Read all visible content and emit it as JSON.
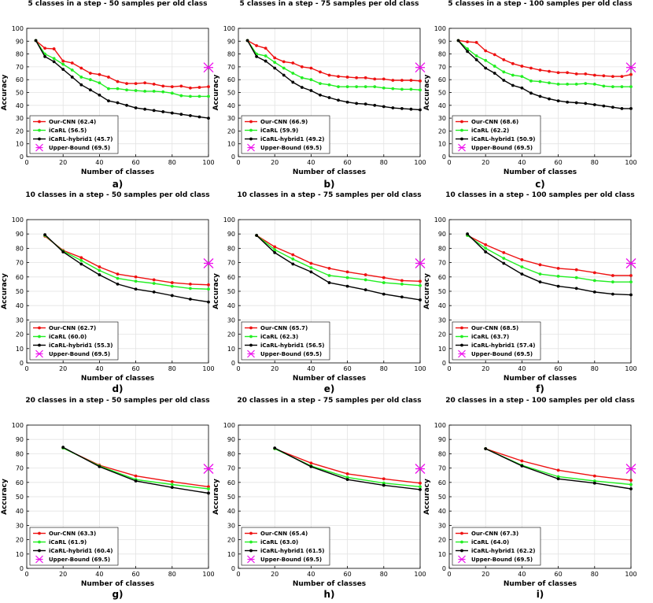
{
  "figure": {
    "colors": {
      "ours": "#ee1111",
      "icarl": "#22ee22",
      "hybrid": "#000000",
      "upper": "#ee11ee"
    },
    "series_names": [
      "Our-CNN",
      "iCaRL",
      "iCaRL-hybrid1",
      "Upper-Bound"
    ]
  },
  "chart_data": [
    {
      "type": "line",
      "panel": "a)",
      "title": "5 classes in a step - 50 samples per old class",
      "xlabel": "Number of classes",
      "ylabel": "Accuracy",
      "xlim": [
        0,
        100
      ],
      "ylim": [
        0,
        100
      ],
      "xticks": [
        0,
        20,
        40,
        60,
        80,
        100
      ],
      "yticks": [
        0,
        10,
        20,
        30,
        40,
        50,
        60,
        70,
        80,
        90,
        100
      ],
      "x": [
        5,
        10,
        15,
        20,
        25,
        30,
        35,
        40,
        45,
        50,
        55,
        60,
        65,
        70,
        75,
        80,
        85,
        90,
        95,
        100
      ],
      "series": [
        {
          "name": "Our-CNN",
          "legend": "Our-CNN (62.4)",
          "color": "#ee1111",
          "values": [
            90.5,
            84.5,
            84,
            74.5,
            73,
            69,
            65,
            64,
            62,
            58.5,
            57,
            57,
            57.5,
            56.5,
            55,
            54.5,
            55,
            53.5,
            54,
            54.5
          ]
        },
        {
          "name": "iCaRL",
          "legend": "iCaRL (56.5)",
          "color": "#22ee22",
          "values": [
            90.5,
            80,
            76.5,
            72,
            67.5,
            62,
            60,
            57.5,
            53,
            53,
            52,
            51.5,
            51,
            51,
            50.5,
            49.5,
            47.5,
            47,
            47,
            47
          ]
        },
        {
          "name": "iCaRL-hybrid1",
          "legend": "iCaRL-hybrid1 (45.7)",
          "color": "#000000",
          "values": [
            90.5,
            78,
            74,
            68,
            62,
            56,
            52,
            48,
            43.5,
            42,
            40,
            38,
            37,
            36,
            35,
            34,
            33,
            32,
            31,
            30
          ]
        }
      ],
      "upper_bound": {
        "legend": "Upper-Bound (69.5)",
        "x": 100,
        "y": 69.5,
        "color": "#ee11ee"
      },
      "legend_position": "bottom-left"
    },
    {
      "type": "line",
      "panel": "b)",
      "title": "5 classes in a step - 75 samples per old class",
      "xlabel": "Number of classes",
      "ylabel": "Accuracy",
      "xlim": [
        0,
        100
      ],
      "ylim": [
        0,
        100
      ],
      "xticks": [
        0,
        20,
        40,
        60,
        80,
        100
      ],
      "yticks": [
        0,
        10,
        20,
        30,
        40,
        50,
        60,
        70,
        80,
        90,
        100
      ],
      "x": [
        5,
        10,
        15,
        20,
        25,
        30,
        35,
        40,
        45,
        50,
        55,
        60,
        65,
        70,
        75,
        80,
        85,
        90,
        95,
        100
      ],
      "series": [
        {
          "name": "Our-CNN",
          "legend": "Our-CNN (66.9)",
          "color": "#ee1111",
          "values": [
            90.5,
            86.5,
            84.5,
            77,
            74,
            73,
            70,
            69,
            66,
            63.5,
            62.5,
            62,
            61.5,
            61.5,
            60.5,
            60.5,
            59.5,
            59.5,
            59.5,
            59
          ]
        },
        {
          "name": "iCaRL",
          "legend": "iCaRL (59.9)",
          "color": "#22ee22",
          "values": [
            90.5,
            80,
            78.5,
            73.5,
            69,
            65,
            61.5,
            60,
            57,
            56,
            54.5,
            54.5,
            54.5,
            54.5,
            54.5,
            53.5,
            53,
            52.5,
            52.5,
            52
          ]
        },
        {
          "name": "iCaRL-hybrid1",
          "legend": "iCaRL-hybrid1 (49.2)",
          "color": "#000000",
          "values": [
            90.5,
            78,
            74.5,
            69,
            63.5,
            58,
            54,
            51.5,
            48,
            46,
            44,
            42.5,
            41.5,
            41,
            40,
            39,
            38,
            37.5,
            37,
            36.5
          ]
        }
      ],
      "upper_bound": {
        "legend": "Upper-Bound (69.5)",
        "x": 100,
        "y": 69.5,
        "color": "#ee11ee"
      },
      "legend_position": "bottom-left"
    },
    {
      "type": "line",
      "panel": "c)",
      "title": "5 classes in a step - 100 samples per old class",
      "xlabel": "Number of classes",
      "ylabel": "Accuracy",
      "xlim": [
        0,
        100
      ],
      "ylim": [
        0,
        100
      ],
      "xticks": [
        0,
        20,
        40,
        60,
        80,
        100
      ],
      "yticks": [
        0,
        10,
        20,
        30,
        40,
        50,
        60,
        70,
        80,
        90,
        100
      ],
      "x": [
        5,
        10,
        15,
        20,
        25,
        30,
        35,
        40,
        45,
        50,
        55,
        60,
        65,
        70,
        75,
        80,
        85,
        90,
        95,
        100
      ],
      "series": [
        {
          "name": "Our-CNN",
          "legend": "Our-CNN (68.6)",
          "color": "#ee1111",
          "values": [
            90.5,
            89.5,
            89,
            82.5,
            79.5,
            75.5,
            72.5,
            70.5,
            69,
            67.5,
            66.5,
            65.5,
            65.5,
            64.5,
            64.5,
            63.5,
            63,
            62.5,
            62.5,
            64
          ]
        },
        {
          "name": "iCaRL",
          "legend": "iCaRL (62.2)",
          "color": "#22ee22",
          "values": [
            90.5,
            84,
            78.5,
            75,
            70.5,
            66,
            63.5,
            62.5,
            59,
            58.5,
            57.5,
            56.5,
            56.5,
            56.5,
            57,
            56.5,
            55,
            54.5,
            54.5,
            54.5
          ]
        },
        {
          "name": "iCaRL-hybrid1",
          "legend": "iCaRL-hybrid1 (50.9)",
          "color": "#000000",
          "values": [
            90.5,
            82,
            75.5,
            69,
            65,
            59.5,
            55.5,
            53.5,
            49.5,
            47,
            45,
            43.5,
            42.5,
            42,
            41.5,
            40.5,
            39.5,
            38.5,
            37.5,
            37.5
          ]
        }
      ],
      "upper_bound": {
        "legend": "Upper-Bound (69.5)",
        "x": 100,
        "y": 69.5,
        "color": "#ee11ee"
      },
      "legend_position": "bottom-left"
    },
    {
      "type": "line",
      "panel": "d)",
      "title": "10 classes in a step - 50 samples per old class",
      "xlabel": "Number of classes",
      "ylabel": "Accuracy",
      "xlim": [
        0,
        100
      ],
      "ylim": [
        0,
        100
      ],
      "xticks": [
        0,
        20,
        40,
        60,
        80,
        100
      ],
      "yticks": [
        0,
        10,
        20,
        30,
        40,
        50,
        60,
        70,
        80,
        90,
        100
      ],
      "x": [
        10,
        20,
        30,
        40,
        50,
        60,
        70,
        80,
        90,
        100
      ],
      "series": [
        {
          "name": "Our-CNN",
          "legend": "Our-CNN (62.7)",
          "color": "#ee1111",
          "values": [
            88.5,
            78.5,
            73.5,
            67,
            62,
            60,
            58,
            56,
            55,
            54.5
          ]
        },
        {
          "name": "iCaRL",
          "legend": "iCaRL (60.0)",
          "color": "#22ee22",
          "values": [
            89,
            78,
            71.5,
            64.5,
            59,
            57,
            55.5,
            53.5,
            52,
            51.5
          ]
        },
        {
          "name": "iCaRL-hybrid1",
          "legend": "iCaRL-hybrid1 (55.3)",
          "color": "#000000",
          "values": [
            89.5,
            77.5,
            69,
            61.5,
            55,
            51.5,
            49.5,
            47,
            44.5,
            42.5
          ]
        }
      ],
      "upper_bound": {
        "legend": "Upper-Bound (69.5)",
        "x": 100,
        "y": 69.5,
        "color": "#ee11ee"
      },
      "legend_position": "bottom-left"
    },
    {
      "type": "line",
      "panel": "e)",
      "title": "10 classes in a step - 75 samples per old class",
      "xlabel": "Number of classes",
      "ylabel": "Accuracy",
      "xlim": [
        0,
        100
      ],
      "ylim": [
        0,
        100
      ],
      "xticks": [
        0,
        20,
        40,
        60,
        80,
        100
      ],
      "yticks": [
        0,
        10,
        20,
        30,
        40,
        50,
        60,
        70,
        80,
        90,
        100
      ],
      "x": [
        10,
        20,
        30,
        40,
        50,
        60,
        70,
        80,
        90,
        100
      ],
      "series": [
        {
          "name": "Our-CNN",
          "legend": "Our-CNN (65.7)",
          "color": "#ee1111",
          "values": [
            89,
            81,
            75.5,
            69.5,
            66,
            63.5,
            61.5,
            59.5,
            57.5,
            57
          ]
        },
        {
          "name": "iCaRL",
          "legend": "iCaRL (62.3)",
          "color": "#22ee22",
          "values": [
            89,
            79,
            72.5,
            66.5,
            61,
            59.5,
            58,
            56,
            55,
            54
          ]
        },
        {
          "name": "iCaRL-hybrid1",
          "legend": "iCaRL-hybrid1 (56.5)",
          "color": "#000000",
          "values": [
            89,
            77,
            69,
            63.5,
            56,
            53.5,
            51,
            48,
            46,
            44
          ]
        }
      ],
      "upper_bound": {
        "legend": "Upper-Bound (69.5)",
        "x": 100,
        "y": 69.5,
        "color": "#ee11ee"
      },
      "legend_position": "bottom-left"
    },
    {
      "type": "line",
      "panel": "f)",
      "title": "10 classes in a step - 100 samples per old class",
      "xlabel": "Number of classes",
      "ylabel": "Accuracy",
      "xlim": [
        0,
        100
      ],
      "ylim": [
        0,
        100
      ],
      "xticks": [
        0,
        20,
        40,
        60,
        80,
        100
      ],
      "yticks": [
        0,
        10,
        20,
        30,
        40,
        50,
        60,
        70,
        80,
        90,
        100
      ],
      "x": [
        10,
        20,
        30,
        40,
        50,
        60,
        70,
        80,
        90,
        100
      ],
      "series": [
        {
          "name": "Our-CNN",
          "legend": "Our-CNN (68.5)",
          "color": "#ee1111",
          "values": [
            89,
            82.5,
            77,
            72,
            68.5,
            66,
            65,
            63,
            61,
            61
          ]
        },
        {
          "name": "iCaRL",
          "legend": "iCaRL (63.7)",
          "color": "#22ee22",
          "values": [
            89,
            80,
            73,
            67,
            62,
            60.5,
            59.5,
            57.5,
            56.5,
            56.5
          ]
        },
        {
          "name": "iCaRL-hybrid1",
          "legend": "iCaRL-hybrid1 (57.4)",
          "color": "#000000",
          "values": [
            90,
            77.5,
            69.5,
            62,
            56.5,
            53.5,
            52,
            49.5,
            48,
            47.5
          ]
        }
      ],
      "upper_bound": {
        "legend": "Upper-Bound (69.5)",
        "x": 100,
        "y": 69.5,
        "color": "#ee11ee"
      },
      "legend_position": "bottom-left"
    },
    {
      "type": "line",
      "panel": "g)",
      "title": "20 classes in a step - 50 samples per old class",
      "xlabel": "Number of classes",
      "ylabel": "Accuracy",
      "xlim": [
        0,
        100
      ],
      "ylim": [
        0,
        100
      ],
      "xticks": [
        0,
        20,
        40,
        60,
        80,
        100
      ],
      "yticks": [
        0,
        10,
        20,
        30,
        40,
        50,
        60,
        70,
        80,
        90,
        100
      ],
      "x": [
        20,
        40,
        60,
        80,
        100
      ],
      "series": [
        {
          "name": "Our-CNN",
          "legend": "Our-CNN (63.3)",
          "color": "#ee1111",
          "values": [
            84,
            72,
            64.5,
            60.5,
            57
          ]
        },
        {
          "name": "iCaRL",
          "legend": "iCaRL (61.9)",
          "color": "#22ee22",
          "values": [
            84,
            71.5,
            62,
            58.5,
            55.5
          ]
        },
        {
          "name": "iCaRL-hybrid1",
          "legend": "iCaRL-hybrid1 (60.4)",
          "color": "#000000",
          "values": [
            84.5,
            71,
            61,
            56.5,
            52.5
          ]
        }
      ],
      "upper_bound": {
        "legend": "Upper-Bound (69.5)",
        "x": 100,
        "y": 69.5,
        "color": "#ee11ee"
      },
      "legend_position": "bottom-left"
    },
    {
      "type": "line",
      "panel": "h)",
      "title": "20 classes in a step - 75 samples per old class",
      "xlabel": "Number of classes",
      "ylabel": "Accuracy",
      "xlim": [
        0,
        100
      ],
      "ylim": [
        0,
        100
      ],
      "xticks": [
        0,
        20,
        40,
        60,
        80,
        100
      ],
      "yticks": [
        0,
        10,
        20,
        30,
        40,
        50,
        60,
        70,
        80,
        90,
        100
      ],
      "x": [
        20,
        40,
        60,
        80,
        100
      ],
      "series": [
        {
          "name": "Our-CNN",
          "legend": "Our-CNN (65.4)",
          "color": "#ee1111",
          "values": [
            83.5,
            73.5,
            66,
            62.5,
            59.5
          ]
        },
        {
          "name": "iCaRL",
          "legend": "iCaRL (63.0)",
          "color": "#22ee22",
          "values": [
            83.5,
            71.5,
            63.5,
            59.5,
            57
          ]
        },
        {
          "name": "iCaRL-hybrid1",
          "legend": "iCaRL-hybrid1 (61.5)",
          "color": "#000000",
          "values": [
            84,
            71,
            62,
            58,
            55
          ]
        }
      ],
      "upper_bound": {
        "legend": "Upper-Bound (69.5)",
        "x": 100,
        "y": 69.5,
        "color": "#ee11ee"
      },
      "legend_position": "bottom-left"
    },
    {
      "type": "line",
      "panel": "i)",
      "title": "20 classes in a step - 100 samples per old class",
      "xlabel": "Number of classes",
      "ylabel": "Accuracy",
      "xlim": [
        0,
        100
      ],
      "ylim": [
        0,
        100
      ],
      "xticks": [
        0,
        20,
        40,
        60,
        80,
        100
      ],
      "yticks": [
        0,
        10,
        20,
        30,
        40,
        50,
        60,
        70,
        80,
        90,
        100
      ],
      "x": [
        20,
        40,
        60,
        80,
        100
      ],
      "series": [
        {
          "name": "Our-CNN",
          "legend": "Our-CNN (67.3)",
          "color": "#ee1111",
          "values": [
            83.5,
            75,
            68.5,
            64.5,
            61.5
          ]
        },
        {
          "name": "iCaRL",
          "legend": "iCaRL (64.0)",
          "color": "#22ee22",
          "values": [
            83.5,
            72,
            64,
            61,
            58.5
          ]
        },
        {
          "name": "iCaRL-hybrid1",
          "legend": "iCaRL-hybrid1 (62.2)",
          "color": "#000000",
          "values": [
            83.5,
            71.5,
            62.5,
            59.5,
            55.5
          ]
        }
      ],
      "upper_bound": {
        "legend": "Upper-Bound (69.5)",
        "x": 100,
        "y": 69.5,
        "color": "#ee11ee"
      },
      "legend_position": "bottom-left"
    }
  ]
}
